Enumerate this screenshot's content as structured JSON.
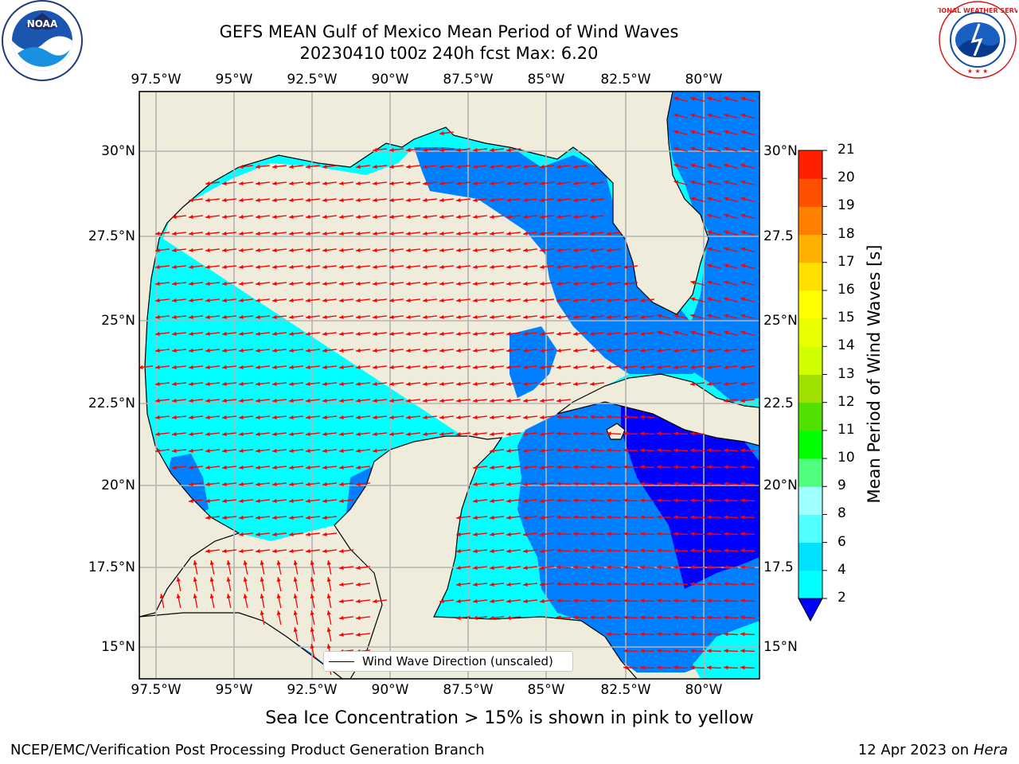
{
  "title_line1": "GEFS MEAN Gulf of Mexico Mean Period of Wind Waves",
  "title_line2": "20230410 t00z 240h fcst   Max: 6.20",
  "noaa_logo": {
    "text": "NOAA",
    "ring_text": "NATIONAL OCEANIC AND ATMOSPHERIC ADMINISTRATION · U.S. DEPARTMENT OF COMMERCE"
  },
  "nws_logo": {
    "ring_text": "NATIONAL WEATHER SERVICE"
  },
  "map": {
    "lon_labels": [
      "97.5°W",
      "95°W",
      "92.5°W",
      "90°W",
      "87.5°W",
      "85°W",
      "82.5°W",
      "80°W"
    ],
    "lat_labels_left": [
      "30°N",
      "27.5°N",
      "25°N",
      "22.5°N",
      "20°N",
      "17.5°N",
      "15°N"
    ],
    "lat_labels_right": [
      "30°N",
      "27.5",
      "25°N",
      "22.5",
      "20°N",
      "17.5",
      "15°N"
    ],
    "lon_range": [
      -98.1,
      -78.4
    ],
    "lat_range": [
      14.0,
      31.8
    ],
    "colors": {
      "land": "#efecdc",
      "light_cyan": "#00ffff",
      "blue": "#0080ff",
      "deep_blue": "#0000ff",
      "arrow": "#ff0000",
      "grid": "#b4b4b4"
    }
  },
  "legend": {
    "label": "Wind Wave Direction (unscaled)"
  },
  "colorbar": {
    "label": "Mean Period of Wind Waves [s]",
    "ticks": [
      "2",
      "4",
      "6",
      "8",
      "9",
      "10",
      "11",
      "12",
      "13",
      "14",
      "15",
      "16",
      "17",
      "18",
      "19",
      "20",
      "21"
    ],
    "colors": [
      "#0080ff",
      "#00e0ff",
      "#00ffff",
      "#50ffff",
      "#a0ffff",
      "#50ff80",
      "#00ff00",
      "#50e000",
      "#a0e000",
      "#d0ff00",
      "#e8ff00",
      "#ffff00",
      "#ffe000",
      "#ffb000",
      "#ff8000",
      "#ff5000",
      "#ff2000",
      "#ff0000"
    ]
  },
  "sea_ice_note": "Sea Ice Concentration > 15% is shown in pink to yellow",
  "footer_left": "NCEP/EMC/Verification Post Processing Product Generation Branch",
  "footer_right_prefix": "12 Apr 2023 on",
  "footer_right_machine": "Hera"
}
